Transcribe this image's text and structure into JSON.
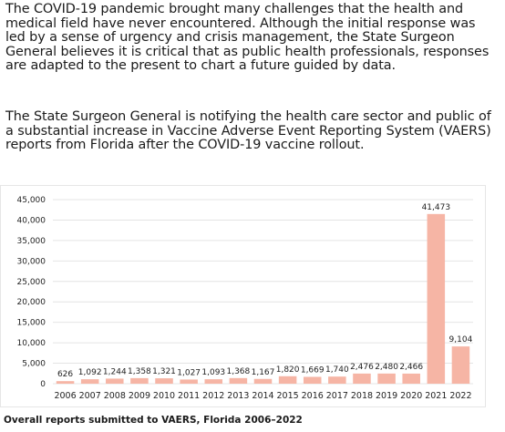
{
  "article": {
    "paragraph1": "The COVID-19 pandemic brought many challenges that the health and medical field have never encountered. Although the initial response was led by a sense of urgency and crisis management, the State Surgeon General believes it is critical that as public health professionals, responses are adapted to the present to chart a future guided by data.",
    "paragraph2": "The State Surgeon General is notifying the health care sector and public of a substantial increase in Vaccine Adverse Event Reporting System (VAERS) reports from Florida after the COVID-19 vaccine rollout."
  },
  "chart_data": {
    "type": "bar",
    "title": "",
    "xlabel": "",
    "ylabel": "",
    "categories": [
      "2006",
      "2007",
      "2008",
      "2009",
      "2010",
      "2011",
      "2012",
      "2013",
      "2014",
      "2015",
      "2016",
      "2017",
      "2018",
      "2019",
      "2020",
      "2021",
      "2022"
    ],
    "values": [
      626,
      1092,
      1244,
      1358,
      1321,
      1027,
      1093,
      1368,
      1167,
      1820,
      1669,
      1740,
      2476,
      2480,
      2466,
      41473,
      9104
    ],
    "value_labels": [
      "626",
      "1,092",
      "1,244",
      "1,358",
      "1,321",
      "1,027",
      "1,093",
      "1,368",
      "1,167",
      "1,820",
      "1,669",
      "1,740",
      "2,476",
      "2,480",
      "2,466",
      "41,473",
      "9,104"
    ],
    "yticks": [
      "0",
      "5,000",
      "10,000",
      "15,000",
      "20,000",
      "25,000",
      "30,000",
      "35,000",
      "40,000",
      "45,000"
    ],
    "ylim": [
      0,
      45000
    ],
    "grid": true,
    "bar_color": "#f6b5a5",
    "grid_color": "#e4e4e4",
    "caption": "Overall reports submitted to VAERS, Florida 2006–2022"
  }
}
